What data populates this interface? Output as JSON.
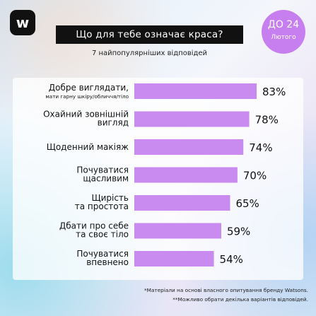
{
  "brand": {
    "logo_letter": "w"
  },
  "header": {
    "title": "Що для тебе означає краса?",
    "subtitle": "7 найпопулярніших відповідей"
  },
  "badge": {
    "line1": "ДО 24",
    "line2": "Лютого"
  },
  "colors": {
    "bar": "#c98bf0",
    "badge": "#c77ff0",
    "title_bg": "#111111"
  },
  "chart_data": {
    "type": "bar",
    "orientation": "horizontal",
    "categories": [
      [
        "Добре виглядати,",
        "мати гарну шкіру/обличчя/тіло"
      ],
      [
        "Охайний зовнішній",
        "вигляд"
      ],
      [
        "Щоденний макіяж"
      ],
      [
        "Почуватися",
        "щасливим"
      ],
      [
        "Щирість",
        "та простота"
      ],
      [
        "Дбати про себе",
        "та своє тіло"
      ],
      [
        "Почуватися",
        "впевнено"
      ]
    ],
    "values": [
      83,
      78,
      74,
      70,
      65,
      59,
      54
    ],
    "value_labels": [
      "83%",
      "78%",
      "74%",
      "70%",
      "65%",
      "59%",
      "54%"
    ],
    "unit": "%"
  },
  "footnotes": [
    "*Матеріали на основі власного опитування бренду Watsons.",
    "**Можливо обрати декілька варіантів відповідей."
  ]
}
